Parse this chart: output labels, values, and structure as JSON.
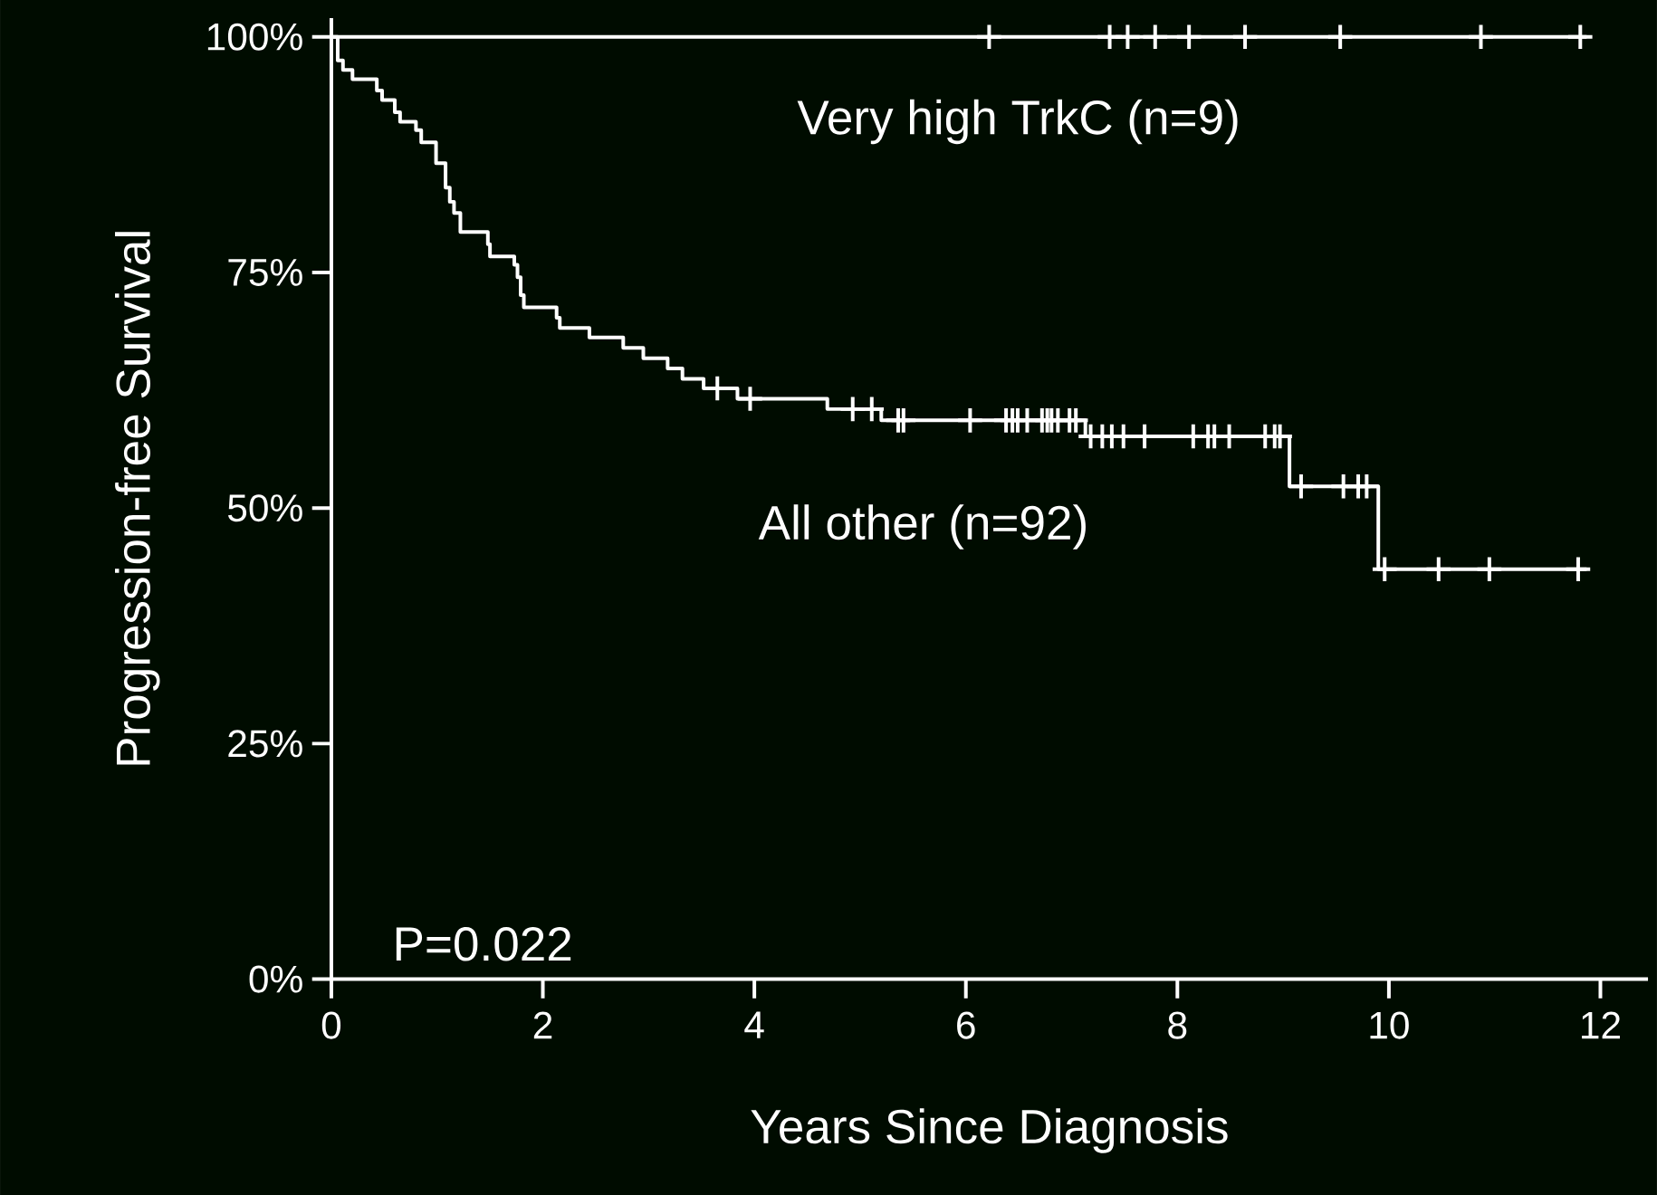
{
  "chart_data": {
    "type": "step",
    "xlabel": "Years Since Diagnosis",
    "ylabel": "Progression-free Survival",
    "xlim": [
      0,
      12.45
    ],
    "ylim": [
      0,
      102
    ],
    "xticks": [
      0,
      2,
      4,
      6,
      8,
      10,
      12
    ],
    "yticks": [
      {
        "value": 0,
        "label": "0%"
      },
      {
        "value": 25,
        "label": "25%"
      },
      {
        "value": 50,
        "label": "50%"
      },
      {
        "value": 75,
        "label": "75%"
      },
      {
        "value": 100,
        "label": "100%"
      }
    ],
    "grid": false,
    "legend": false,
    "annotations": [
      "P=0.022"
    ],
    "series": [
      {
        "name": "Very high TrkC (n=9)",
        "color": "#ffffff",
        "x": [
          0,
          11.87
        ],
        "values": [
          100,
          100
        ]
      },
      {
        "name": "All other (n=92)",
        "color": "#ffffff",
        "x": [
          0,
          0.06,
          0.11,
          0.2,
          0.43,
          0.48,
          0.6,
          0.65,
          0.8,
          0.85,
          0.99,
          1.08,
          1.12,
          1.16,
          1.22,
          1.48,
          1.5,
          1.73,
          1.76,
          1.79,
          1.82,
          2.13,
          2.16,
          2.44,
          2.76,
          2.95,
          3.18,
          3.32,
          3.52,
          3.84,
          4.69,
          5.2,
          7.13,
          9.06,
          9.9,
          11.87
        ],
        "values": [
          100,
          97.5,
          96.5,
          95.5,
          94.3,
          93.3,
          92.0,
          91.0,
          90.1,
          88.8,
          86.6,
          84,
          82.5,
          81.3,
          79.3,
          78,
          76.7,
          75.8,
          74.5,
          72.6,
          71.3,
          70.2,
          69.1,
          68.1,
          67.0,
          65.9,
          64.8,
          63.7,
          62.7,
          61.6,
          60.5,
          59.3,
          57.6,
          52.3,
          43.5,
          43.5
        ]
      },
      {
        "type": "scatter",
        "marker": "cross",
        "color": "#ffffff",
        "x": [
          6.22,
          7.36,
          7.53,
          7.79,
          8.11,
          8.64,
          9.54,
          10.87,
          11.81
        ],
        "values": [
          100,
          100,
          100,
          100,
          100,
          100,
          100,
          100,
          100
        ]
      },
      {
        "type": "scatter",
        "marker": "cross",
        "color": "#ffffff",
        "x": [
          3.65,
          3.96,
          4.93,
          5.11,
          5.36,
          5.41,
          6.04,
          6.38,
          6.44,
          6.49,
          6.58,
          6.72,
          6.77,
          6.81,
          6.87,
          6.98,
          7.04,
          7.18,
          7.29,
          7.38,
          7.49,
          7.69,
          8.15,
          8.29,
          8.35,
          8.49,
          8.83,
          8.92,
          8.97,
          9.17,
          9.57,
          9.71,
          9.79,
          9.96,
          10.47,
          10.95,
          11.79
        ],
        "values": [
          62.7,
          61.6,
          60.5,
          60.5,
          59.3,
          59.3,
          59.3,
          59.3,
          59.3,
          59.3,
          59.3,
          59.3,
          59.3,
          59.3,
          59.3,
          59.3,
          59.3,
          57.6,
          57.6,
          57.6,
          57.6,
          57.6,
          57.6,
          57.6,
          57.6,
          57.6,
          57.6,
          57.6,
          57.6,
          52.3,
          52.3,
          52.3,
          52.3,
          43.5,
          43.5,
          43.5,
          43.5
        ]
      }
    ]
  }
}
